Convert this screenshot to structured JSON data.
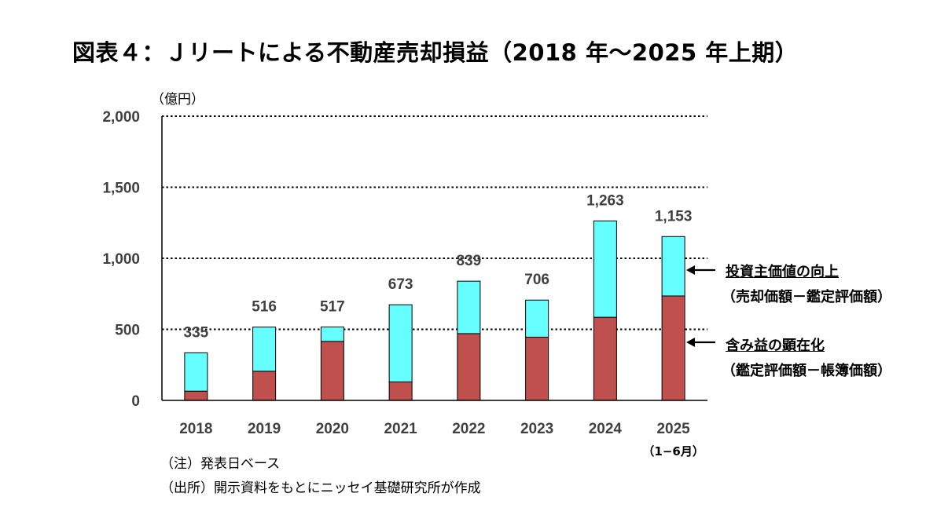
{
  "title": "図表４：Ｊリートによる不動産売却損益（2018 年～2025 年上期）",
  "unit_label": "（億円）",
  "chart_data": {
    "type": "bar",
    "stacked": true,
    "categories": [
      "2018",
      "2019",
      "2020",
      "2021",
      "2022",
      "2023",
      "2024",
      "2025"
    ],
    "category_sublabels": [
      "",
      "",
      "",
      "",
      "",
      "",
      "",
      "（1−6月）"
    ],
    "totals": [
      335,
      516,
      517,
      673,
      839,
      706,
      1263,
      1153
    ],
    "total_labels": [
      "335",
      "516",
      "517",
      "673",
      "839",
      "706",
      "1,263",
      "1,153"
    ],
    "series": [
      {
        "name": "含み益の顕在化",
        "color": "#c0504d",
        "values": [
          65,
          205,
          415,
          130,
          470,
          445,
          585,
          735
        ]
      },
      {
        "name": "投資主価値の向上",
        "color": "#66ffff",
        "values": [
          270,
          311,
          102,
          543,
          369,
          261,
          678,
          418
        ]
      }
    ],
    "ylim": [
      0,
      2000
    ],
    "yticks": [
      0,
      500,
      1000,
      1500,
      2000
    ],
    "ytick_labels": [
      "0",
      "500",
      "1,000",
      "1,500",
      "2,000"
    ],
    "grid": "dotted-horizontal"
  },
  "legend": {
    "upper": {
      "head": "投資主価値の向上",
      "sub": "（売却価額－鑑定評価額）"
    },
    "lower": {
      "head": "含み益の顕在化",
      "sub": "（鑑定評価額－帳簿価額）"
    }
  },
  "notes": {
    "note1": "（注）発表日ベース",
    "note2": "（出所）開示資料をもとにニッセイ基礎研究所が作成"
  }
}
